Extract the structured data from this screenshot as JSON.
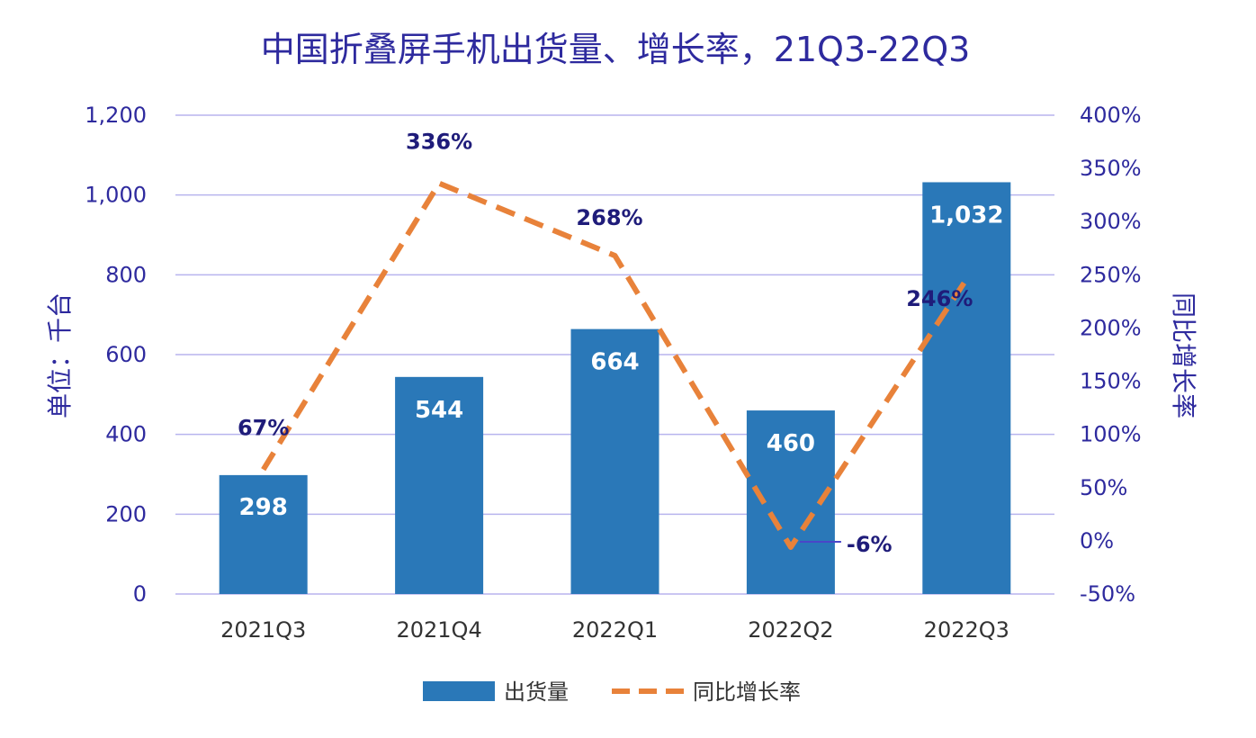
{
  "chart_data": {
    "type": "bar",
    "title": "中国折叠屏手机出货量、增长率，21Q3-22Q3",
    "categories": [
      "2021Q3",
      "2021Q4",
      "2022Q1",
      "2022Q2",
      "2022Q3"
    ],
    "series": [
      {
        "name": "出货量",
        "type": "bar",
        "axis": "left",
        "values": [
          298,
          544,
          664,
          460,
          1032
        ],
        "labels": [
          "298",
          "544",
          "664",
          "460",
          "1,032"
        ],
        "color": "#2a78b8"
      },
      {
        "name": "同比增长率",
        "type": "line",
        "axis": "right",
        "style": "dashed",
        "values": [
          67,
          336,
          268,
          -6,
          246
        ],
        "labels": [
          "67%",
          "336%",
          "268%",
          "-6%",
          "246%"
        ],
        "color": "#e8823a"
      }
    ],
    "ylabel": "单位：千台",
    "y2label": "同比增长率",
    "ylim": [
      0,
      1200
    ],
    "y2lim": [
      -50,
      400
    ],
    "yticks": [
      "0",
      "200",
      "400",
      "600",
      "800",
      "1,000",
      "1,200"
    ],
    "y2ticks": [
      "-50%",
      "0%",
      "50%",
      "100%",
      "150%",
      "200%",
      "250%",
      "300%",
      "350%",
      "400%"
    ],
    "grid": true,
    "legend": "bottom"
  }
}
